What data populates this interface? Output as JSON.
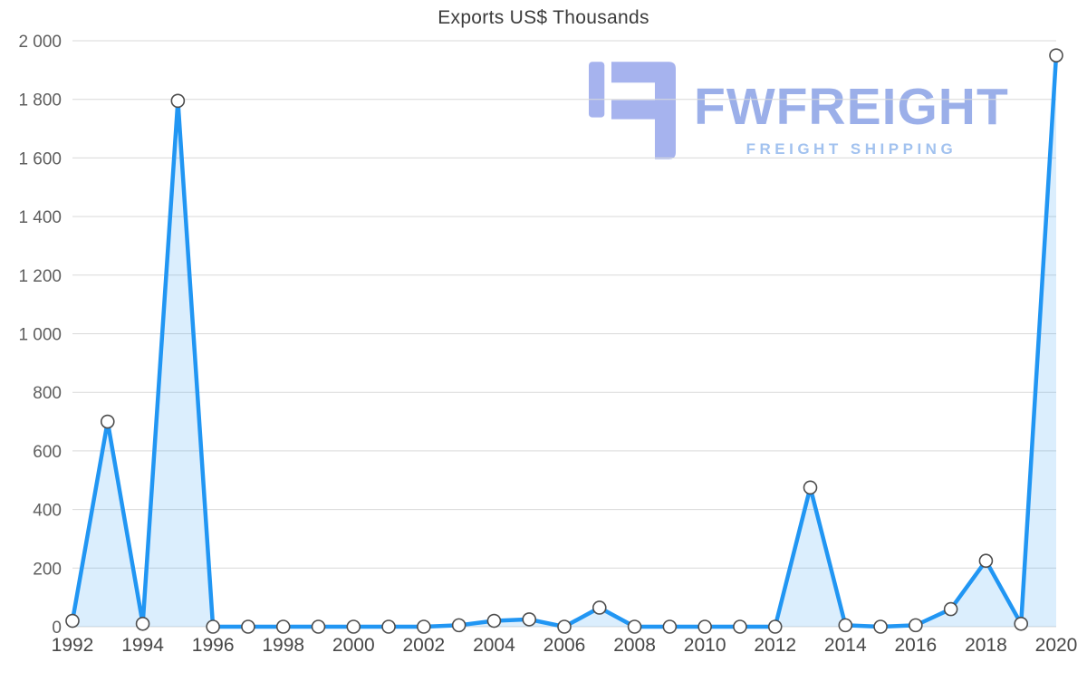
{
  "chart_data": {
    "type": "area",
    "title": "Exports US$ Thousands",
    "x": [
      1992,
      1993,
      1994,
      1995,
      1996,
      1997,
      1998,
      1999,
      2000,
      2001,
      2002,
      2003,
      2004,
      2005,
      2006,
      2007,
      2008,
      2009,
      2010,
      2011,
      2012,
      2013,
      2014,
      2015,
      2016,
      2017,
      2018,
      2019,
      2020
    ],
    "values": [
      20,
      700,
      10,
      1795,
      0,
      0,
      0,
      0,
      0,
      0,
      0,
      5,
      20,
      25,
      0,
      65,
      0,
      0,
      0,
      0,
      0,
      475,
      5,
      0,
      5,
      60,
      225,
      10,
      1950
    ],
    "xlabel": "",
    "ylabel": "",
    "ylim": [
      0,
      2000
    ],
    "y_ticks": [
      0,
      200,
      400,
      600,
      800,
      1000,
      1200,
      1400,
      1600,
      1800,
      2000
    ],
    "x_tick_interval": 2,
    "grid": true,
    "legend": "none",
    "colors": {
      "line": "#2196f3",
      "fill": "rgba(33,150,243,0.16)",
      "marker_fill": "#ffffff",
      "marker_stroke": "#4d4d4d",
      "grid": "#d9d9d9",
      "axis_text": "#5e5e5e",
      "title_text": "#3c3c3c"
    }
  },
  "watermark": {
    "brand": "FWFREIGHT",
    "tagline": "FREIGHT SHIPPING",
    "brand_color": "#9bafe9",
    "tagline_color": "#a2c2ef",
    "icon_color": "#a6b3ee"
  }
}
